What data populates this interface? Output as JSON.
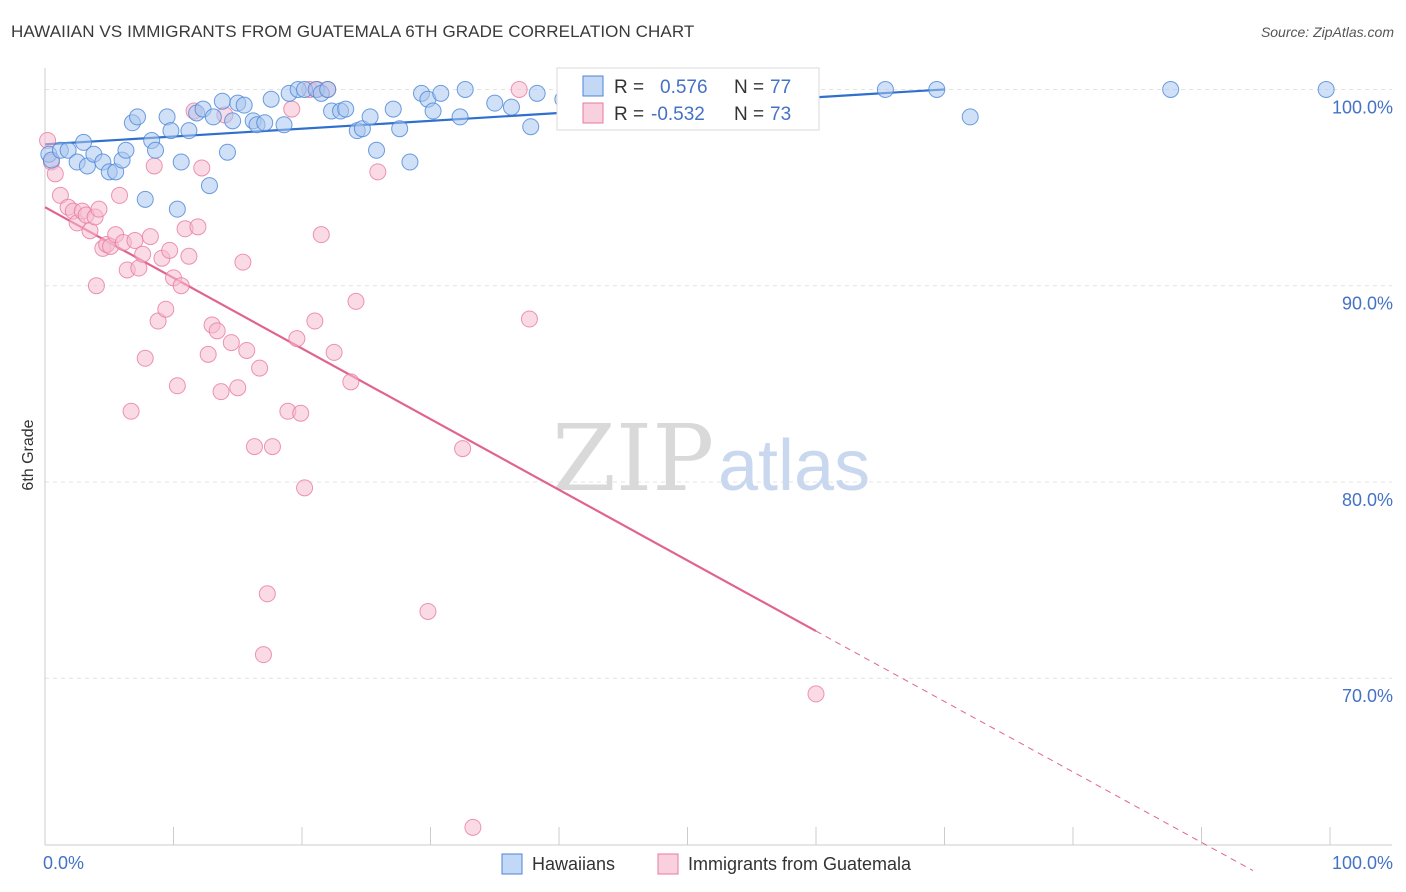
{
  "header": {
    "title": "HAWAIIAN VS IMMIGRANTS FROM GUATEMALA 6TH GRADE CORRELATION CHART",
    "source": "Source: ZipAtlas.com"
  },
  "watermark": {
    "zip": "ZIP",
    "atlas": "atlas"
  },
  "colors": {
    "blue": "#4a86d8",
    "blue_fill": "#a9c7ef",
    "blue_line": "#2f6fcd",
    "pink": "#e87aa0",
    "pink_fill": "#f6bcd0",
    "pink_line": "#e0648f",
    "axis_text": "#4472c4",
    "grid": "#e3e3e3"
  },
  "legend": {
    "rows": [
      {
        "r_label": "R =",
        "r_value": "0.576",
        "n_label": "N =",
        "n_value": "77"
      },
      {
        "r_label": "R =",
        "r_value": "-0.532",
        "n_label": "N =",
        "n_value": "73"
      }
    ]
  },
  "chart_data": {
    "type": "scatter",
    "title": "HAWAIIAN VS IMMIGRANTS FROM GUATEMALA 6TH GRADE CORRELATION CHART",
    "xlabel": "",
    "ylabel": "6th Grade",
    "xlim": [
      0,
      100
    ],
    "ylim": [
      61.5,
      101.5
    ],
    "x_tick_labels": [
      "0.0%",
      "100.0%"
    ],
    "y_ticks": [
      100,
      90,
      80,
      70
    ],
    "y_tick_labels": [
      "100.0%",
      "90.0%",
      "80.0%",
      "70.0%"
    ],
    "grid": true,
    "legend_position": "top-center",
    "series": [
      {
        "name": "Hawaiians",
        "color": "#4a86d8",
        "r": 0.576,
        "n": 77,
        "trend": {
          "x": [
            0,
            70
          ],
          "y": [
            97.2,
            100.0
          ]
        },
        "points": [
          [
            0.3,
            96.7
          ],
          [
            0.5,
            96.4
          ],
          [
            1.2,
            96.9
          ],
          [
            1.8,
            96.9
          ],
          [
            2.5,
            96.3
          ],
          [
            3.0,
            97.3
          ],
          [
            3.3,
            96.1
          ],
          [
            3.8,
            96.7
          ],
          [
            4.5,
            96.3
          ],
          [
            5.0,
            95.8
          ],
          [
            5.5,
            95.8
          ],
          [
            6.0,
            96.4
          ],
          [
            6.3,
            96.9
          ],
          [
            6.8,
            98.3
          ],
          [
            7.2,
            98.6
          ],
          [
            7.8,
            94.4
          ],
          [
            8.3,
            97.4
          ],
          [
            8.6,
            96.9
          ],
          [
            9.5,
            98.6
          ],
          [
            9.8,
            97.9
          ],
          [
            10.3,
            93.9
          ],
          [
            10.6,
            96.3
          ],
          [
            11.2,
            97.9
          ],
          [
            11.8,
            98.8
          ],
          [
            12.3,
            99.0
          ],
          [
            12.8,
            95.1
          ],
          [
            13.1,
            98.6
          ],
          [
            13.8,
            99.4
          ],
          [
            14.2,
            96.8
          ],
          [
            14.6,
            98.4
          ],
          [
            15.0,
            99.3
          ],
          [
            15.5,
            99.2
          ],
          [
            16.2,
            98.4
          ],
          [
            16.5,
            98.2
          ],
          [
            17.1,
            98.3
          ],
          [
            17.6,
            99.5
          ],
          [
            18.6,
            98.2
          ],
          [
            19.0,
            99.8
          ],
          [
            19.7,
            100.0
          ],
          [
            20.2,
            100.0
          ],
          [
            21.1,
            100.0
          ],
          [
            21.5,
            99.8
          ],
          [
            22.0,
            100.0
          ],
          [
            22.3,
            98.9
          ],
          [
            23.0,
            98.9
          ],
          [
            23.4,
            99.0
          ],
          [
            24.3,
            97.9
          ],
          [
            24.7,
            98.0
          ],
          [
            25.3,
            98.6
          ],
          [
            25.8,
            96.9
          ],
          [
            27.1,
            99.0
          ],
          [
            27.6,
            98.0
          ],
          [
            28.4,
            96.3
          ],
          [
            29.3,
            99.8
          ],
          [
            29.8,
            99.5
          ],
          [
            30.2,
            98.9
          ],
          [
            30.8,
            99.8
          ],
          [
            32.3,
            98.6
          ],
          [
            32.7,
            100.0
          ],
          [
            35.0,
            99.3
          ],
          [
            36.3,
            99.1
          ],
          [
            37.8,
            98.1
          ],
          [
            38.3,
            99.8
          ],
          [
            40.3,
            99.5
          ],
          [
            42.3,
            99.9
          ],
          [
            43.5,
            99.1
          ],
          [
            46.0,
            99.0
          ],
          [
            47.0,
            98.5
          ],
          [
            52.3,
            99.8
          ],
          [
            55.8,
            99.2
          ],
          [
            57.2,
            99.9
          ],
          [
            58.8,
            99.9
          ],
          [
            65.4,
            100.0
          ],
          [
            69.4,
            100.0
          ],
          [
            72.0,
            98.6
          ],
          [
            87.6,
            100.0
          ],
          [
            99.7,
            100.0
          ]
        ]
      },
      {
        "name": "Immigrants from Guatemala",
        "color": "#e87aa0",
        "r": -0.532,
        "n": 73,
        "trend": {
          "x": [
            0,
            60
          ],
          "y": [
            94.0,
            72.4
          ]
        },
        "trend_dashed": {
          "x": [
            60,
            94
          ],
          "y": [
            72.4,
            60.2
          ]
        },
        "points": [
          [
            0.2,
            97.4
          ],
          [
            0.5,
            96.3
          ],
          [
            0.8,
            95.7
          ],
          [
            1.2,
            94.6
          ],
          [
            1.8,
            94.0
          ],
          [
            2.2,
            93.8
          ],
          [
            2.5,
            93.2
          ],
          [
            2.9,
            93.8
          ],
          [
            3.2,
            93.6
          ],
          [
            3.5,
            92.8
          ],
          [
            3.9,
            93.5
          ],
          [
            4.2,
            93.9
          ],
          [
            4.0,
            90.0
          ],
          [
            4.5,
            91.9
          ],
          [
            4.8,
            92.1
          ],
          [
            5.1,
            92.0
          ],
          [
            5.5,
            92.6
          ],
          [
            5.8,
            94.6
          ],
          [
            6.1,
            92.2
          ],
          [
            6.4,
            90.8
          ],
          [
            6.7,
            83.6
          ],
          [
            7.0,
            92.3
          ],
          [
            7.3,
            90.9
          ],
          [
            7.6,
            91.6
          ],
          [
            7.8,
            86.3
          ],
          [
            8.2,
            92.5
          ],
          [
            8.5,
            96.1
          ],
          [
            8.8,
            88.2
          ],
          [
            9.1,
            91.4
          ],
          [
            9.4,
            88.8
          ],
          [
            9.7,
            91.8
          ],
          [
            10.0,
            90.4
          ],
          [
            10.3,
            84.9
          ],
          [
            10.6,
            90.0
          ],
          [
            10.9,
            92.9
          ],
          [
            11.2,
            91.5
          ],
          [
            11.6,
            98.9
          ],
          [
            11.9,
            93.0
          ],
          [
            12.2,
            96.0
          ],
          [
            12.7,
            86.5
          ],
          [
            13.0,
            88.0
          ],
          [
            13.4,
            87.7
          ],
          [
            13.7,
            84.6
          ],
          [
            14.0,
            98.7
          ],
          [
            14.5,
            87.1
          ],
          [
            15.0,
            84.8
          ],
          [
            15.4,
            91.2
          ],
          [
            15.7,
            86.7
          ],
          [
            16.3,
            81.8
          ],
          [
            16.7,
            85.8
          ],
          [
            17.0,
            71.2
          ],
          [
            17.3,
            74.3
          ],
          [
            17.7,
            81.8
          ],
          [
            18.9,
            83.6
          ],
          [
            19.2,
            99.0
          ],
          [
            19.6,
            87.3
          ],
          [
            19.9,
            83.5
          ],
          [
            20.2,
            79.7
          ],
          [
            20.6,
            100.0
          ],
          [
            21.0,
            88.2
          ],
          [
            21.2,
            100.0
          ],
          [
            21.5,
            92.6
          ],
          [
            22.0,
            100.0
          ],
          [
            22.5,
            86.6
          ],
          [
            23.8,
            85.1
          ],
          [
            24.2,
            89.2
          ],
          [
            25.9,
            95.8
          ],
          [
            29.8,
            73.4
          ],
          [
            32.5,
            81.7
          ],
          [
            33.3,
            62.4
          ],
          [
            36.9,
            100.0
          ],
          [
            37.7,
            88.3
          ],
          [
            60.0,
            69.2
          ]
        ]
      }
    ]
  },
  "bottom_legend": {
    "items": [
      "Hawaiians",
      "Immigrants from Guatemala"
    ]
  }
}
